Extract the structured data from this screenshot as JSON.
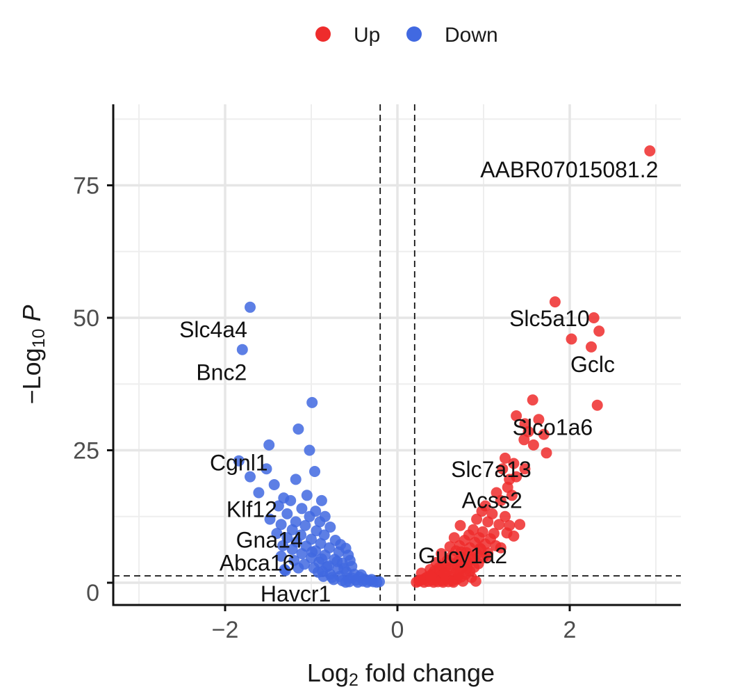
{
  "chart_data": {
    "type": "scatter",
    "title": "",
    "xlabel": "Log₂ fold change",
    "ylabel": "−Log₁₀ P",
    "xlim": [
      -3.2,
      3.3
    ],
    "ylim": [
      -4,
      90
    ],
    "x_ticks": [
      -2,
      0,
      2
    ],
    "x_tick_labels": [
      "−2",
      "0",
      "2"
    ],
    "y_ticks": [
      0,
      25,
      50,
      75
    ],
    "y_tick_labels": [
      "0",
      "25",
      "50",
      "75"
    ],
    "cutoffs": {
      "log2fc": [
        -0.2,
        0.2
      ],
      "neg_log10_p": 1.3
    },
    "legend": {
      "position": "top",
      "items": [
        {
          "name": "Up",
          "color": "#ee2c2c"
        },
        {
          "name": "Down",
          "color": "#4169e1"
        }
      ]
    },
    "series": [
      {
        "name": "Up",
        "color": "#ee2c2c",
        "points": [
          [
            2.93,
            81.5
          ],
          [
            1.83,
            53
          ],
          [
            2.28,
            50
          ],
          [
            2.34,
            47.5
          ],
          [
            2.02,
            46
          ],
          [
            2.25,
            44.5
          ],
          [
            1.57,
            34.5
          ],
          [
            2.32,
            33.5
          ],
          [
            1.38,
            31.5
          ],
          [
            1.64,
            30.8
          ],
          [
            1.48,
            30
          ],
          [
            1.52,
            28.5
          ],
          [
            1.7,
            28
          ],
          [
            1.47,
            27
          ],
          [
            1.58,
            26
          ],
          [
            1.73,
            24.5
          ],
          [
            1.25,
            23.5
          ],
          [
            1.35,
            22.5
          ],
          [
            1.22,
            21.5
          ],
          [
            1.48,
            21.5
          ],
          [
            1.38,
            20
          ],
          [
            1.3,
            19.5
          ],
          [
            1.28,
            18
          ],
          [
            1.15,
            17
          ],
          [
            1.33,
            16.5
          ],
          [
            1.2,
            15.5
          ],
          [
            1.02,
            14.5
          ],
          [
            0.98,
            13.5
          ],
          [
            1.1,
            13
          ],
          [
            1.25,
            12.5
          ],
          [
            0.92,
            12
          ],
          [
            1.05,
            11.5
          ],
          [
            1.18,
            11
          ],
          [
            1.3,
            10.8
          ],
          [
            0.73,
            10.8
          ],
          [
            1.42,
            11
          ],
          [
            0.88,
            10
          ],
          [
            0.99,
            9.6
          ],
          [
            1.12,
            9.3
          ],
          [
            0.83,
            9
          ],
          [
            0.95,
            8.5
          ],
          [
            1.08,
            8.3
          ],
          [
            1.27,
            9.4
          ],
          [
            1.35,
            8.8
          ],
          [
            0.78,
            8
          ],
          [
            0.9,
            7.6
          ],
          [
            1.02,
            7.3
          ],
          [
            1.14,
            7
          ],
          [
            0.72,
            7
          ],
          [
            0.84,
            6.6
          ],
          [
            0.97,
            6.3
          ],
          [
            1.2,
            6.6
          ],
          [
            0.68,
            6
          ],
          [
            0.8,
            5.7
          ],
          [
            0.92,
            5.4
          ],
          [
            1.05,
            5.6
          ],
          [
            0.63,
            5
          ],
          [
            0.75,
            4.8
          ],
          [
            0.87,
            4.5
          ],
          [
            0.99,
            4.7
          ],
          [
            0.58,
            4.2
          ],
          [
            0.7,
            4
          ],
          [
            0.82,
            3.8
          ],
          [
            0.94,
            3.6
          ],
          [
            0.53,
            3.5
          ],
          [
            0.65,
            3.3
          ],
          [
            0.77,
            3.1
          ],
          [
            0.89,
            2.9
          ],
          [
            0.48,
            2.8
          ],
          [
            0.6,
            2.6
          ],
          [
            0.72,
            2.4
          ],
          [
            0.84,
            2.2
          ],
          [
            0.43,
            2.2
          ],
          [
            0.55,
            2
          ],
          [
            0.67,
            1.8
          ],
          [
            0.79,
            1.6
          ],
          [
            0.4,
            1.6
          ],
          [
            0.5,
            1.4
          ],
          [
            0.62,
            1.2
          ],
          [
            0.74,
            1.1
          ],
          [
            0.35,
            1.1
          ],
          [
            0.46,
            0.9
          ],
          [
            0.57,
            0.8
          ],
          [
            0.69,
            0.7
          ],
          [
            0.3,
            0.6
          ],
          [
            0.41,
            0.5
          ],
          [
            0.52,
            0.4
          ],
          [
            0.64,
            0.4
          ],
          [
            0.25,
            0.3
          ],
          [
            0.36,
            0.25
          ],
          [
            0.47,
            0.2
          ],
          [
            0.59,
            0.2
          ],
          [
            0.22,
            0.1
          ],
          [
            0.31,
            0.1
          ],
          [
            0.42,
            0.1
          ],
          [
            0.53,
            0.1
          ],
          [
            0.65,
            0.1
          ],
          [
            0.76,
            0.3
          ],
          [
            0.86,
            1
          ],
          [
            0.91,
            0.3
          ],
          [
            0.28,
            1.8
          ],
          [
            0.38,
            2.5
          ],
          [
            0.45,
            3.8
          ],
          [
            0.51,
            5.5
          ],
          [
            0.61,
            6.8
          ],
          [
            0.66,
            8.5
          ],
          [
            0.69,
            3.5
          ],
          [
            0.81,
            2.8
          ],
          [
            0.86,
            5
          ],
          [
            0.96,
            6.5
          ],
          [
            1.04,
            5
          ],
          [
            0.74,
            5.8
          ],
          [
            0.56,
            3
          ],
          [
            0.33,
            0.9
          ],
          [
            0.26,
            0.5
          ],
          [
            0.39,
            1.3
          ],
          [
            0.49,
            2.4
          ],
          [
            0.54,
            1.7
          ],
          [
            0.71,
            1.5
          ],
          [
            0.79,
            4.3
          ]
        ]
      },
      {
        "name": "Down",
        "color": "#4169e1",
        "points": [
          [
            -1.71,
            52
          ],
          [
            -1.8,
            44
          ],
          [
            -0.99,
            34
          ],
          [
            -1.15,
            29
          ],
          [
            -1.49,
            26
          ],
          [
            -1.02,
            25
          ],
          [
            -1.84,
            23
          ],
          [
            -1.52,
            21.5
          ],
          [
            -0.96,
            21
          ],
          [
            -1.71,
            20
          ],
          [
            -1.18,
            19.5
          ],
          [
            -1.43,
            18.5
          ],
          [
            -1.61,
            17
          ],
          [
            -1.32,
            16
          ],
          [
            -1.05,
            16.5
          ],
          [
            -1.24,
            15.5
          ],
          [
            -0.88,
            15.5
          ],
          [
            -1.38,
            14.5
          ],
          [
            -1.11,
            14
          ],
          [
            -0.95,
            13.5
          ],
          [
            -1.28,
            13
          ],
          [
            -1.02,
            12.5
          ],
          [
            -0.84,
            12.5
          ],
          [
            -1.48,
            12
          ],
          [
            -1.18,
            11.5
          ],
          [
            -0.9,
            11.5
          ],
          [
            -1.35,
            11
          ],
          [
            -1.07,
            10.8
          ],
          [
            -0.78,
            10.5
          ],
          [
            -1.22,
            10
          ],
          [
            -0.94,
            9.8
          ],
          [
            -1.4,
            9.3
          ],
          [
            -1.12,
            9
          ],
          [
            -0.85,
            9
          ],
          [
            -1.28,
            8.5
          ],
          [
            -1.0,
            8.2
          ],
          [
            -0.72,
            8
          ],
          [
            -1.17,
            7.7
          ],
          [
            -0.89,
            7.4
          ],
          [
            -1.33,
            7
          ],
          [
            -1.06,
            6.9
          ],
          [
            -0.79,
            6.6
          ],
          [
            -0.6,
            6.5
          ],
          [
            -1.22,
            6.3
          ],
          [
            -0.95,
            6
          ],
          [
            -0.68,
            5.8
          ],
          [
            -1.11,
            5.5
          ],
          [
            -0.84,
            5.2
          ],
          [
            -1.35,
            5
          ],
          [
            -0.57,
            5.2
          ],
          [
            -1.0,
            4.7
          ],
          [
            -0.73,
            4.4
          ],
          [
            -1.2,
            4.2
          ],
          [
            -0.91,
            3.9
          ],
          [
            -0.64,
            3.7
          ],
          [
            -1.08,
            3.5
          ],
          [
            -0.8,
            3.2
          ],
          [
            -0.53,
            3.1
          ],
          [
            -0.97,
            2.8
          ],
          [
            -0.69,
            2.6
          ],
          [
            -1.31,
            2.5
          ],
          [
            -1.3,
            2.3
          ],
          [
            -0.87,
            2.1
          ],
          [
            -0.59,
            2
          ],
          [
            -0.78,
            1.6
          ],
          [
            -0.5,
            1.6
          ],
          [
            -0.67,
            1.2
          ],
          [
            -0.44,
            1.1
          ],
          [
            -0.86,
            1.2
          ],
          [
            -0.57,
            0.8
          ],
          [
            -0.38,
            0.7
          ],
          [
            -0.74,
            0.6
          ],
          [
            -0.48,
            0.5
          ],
          [
            -0.32,
            0.4
          ],
          [
            -0.64,
            0.4
          ],
          [
            -0.4,
            0.3
          ],
          [
            -0.28,
            0.2
          ],
          [
            -0.56,
            0.2
          ],
          [
            -0.35,
            0.1
          ],
          [
            -0.24,
            0.1
          ],
          [
            -0.46,
            0.1
          ],
          [
            -0.21,
            0.2
          ],
          [
            -0.3,
            0.6
          ],
          [
            -0.53,
            0.9
          ],
          [
            -0.62,
            2.7
          ],
          [
            -0.7,
            4
          ],
          [
            -0.76,
            1
          ],
          [
            -0.82,
            3
          ],
          [
            -0.92,
            2
          ],
          [
            -0.99,
            5.8
          ],
          [
            -1.15,
            2.8
          ],
          [
            -0.6,
            0.1
          ],
          [
            -0.42,
            1.5
          ],
          [
            -0.55,
            4.2
          ],
          [
            -0.66,
            7.2
          ],
          [
            -0.88,
            4.5
          ]
        ]
      }
    ],
    "labels": [
      {
        "text": "AABR07015081.2",
        "x": 2.93,
        "y": 81.5
      },
      {
        "text": "Slc5a10",
        "x": 1.83,
        "y": 53
      },
      {
        "text": "Gclc",
        "x": 2.25,
        "y": 44.5
      },
      {
        "text": "Slco1a6",
        "x": 1.64,
        "y": 30.8
      },
      {
        "text": "Slc7a13",
        "x": 1.25,
        "y": 23.5
      },
      {
        "text": "Acss2",
        "x": 1.3,
        "y": 19.5
      },
      {
        "text": "Gucy1a2",
        "x": 0.88,
        "y": 10
      },
      {
        "text": "Slc4a4",
        "x": -1.71,
        "y": 52
      },
      {
        "text": "Bnc2",
        "x": -1.8,
        "y": 44
      },
      {
        "text": "Cgnl1",
        "x": -1.84,
        "y": 23
      },
      {
        "text": "Klf12",
        "x": -1.61,
        "y": 17
      },
      {
        "text": "Gna14",
        "x": -1.43,
        "y": 12
      },
      {
        "text": "Abca16",
        "x": -1.33,
        "y": 7
      },
      {
        "text": "Havcr1",
        "x": -1.31,
        "y": 2.5
      }
    ]
  }
}
